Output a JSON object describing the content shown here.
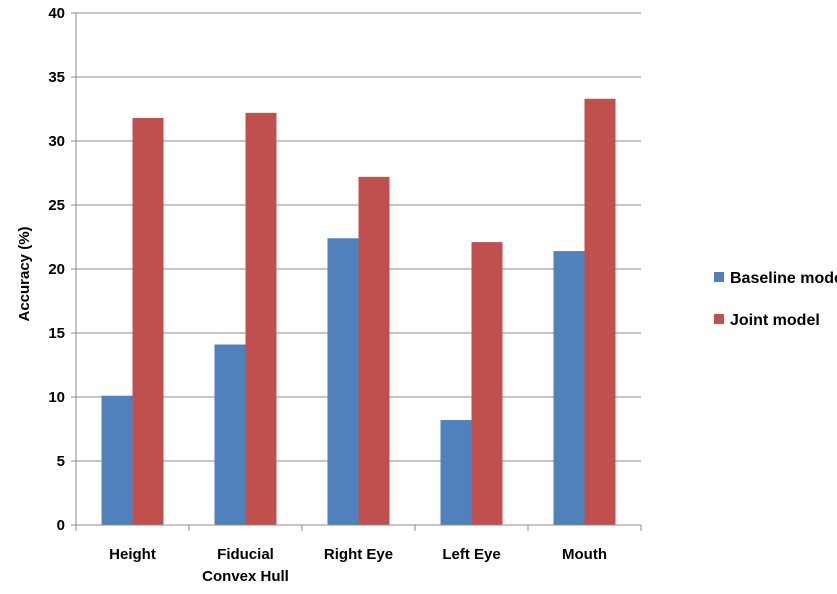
{
  "chart_data": {
    "type": "bar",
    "title": "",
    "xlabel": "",
    "ylabel": "Accuracy (%)",
    "ylim": [
      0,
      40
    ],
    "yticks": [
      0,
      5,
      10,
      15,
      20,
      25,
      30,
      35,
      40
    ],
    "grid": true,
    "legend_position": "right",
    "categories": [
      [
        "Height"
      ],
      [
        "Fiducial",
        "Convex Hull"
      ],
      [
        "Right Eye"
      ],
      [
        "Left Eye"
      ],
      [
        "Mouth"
      ]
    ],
    "series": [
      {
        "name": "Baseline model",
        "color": "#4F81BD",
        "values": [
          10.1,
          14.1,
          22.4,
          8.2,
          21.4
        ]
      },
      {
        "name": "Joint model",
        "color": "#C0504D",
        "values": [
          31.8,
          32.2,
          27.2,
          22.1,
          33.3
        ]
      }
    ]
  }
}
